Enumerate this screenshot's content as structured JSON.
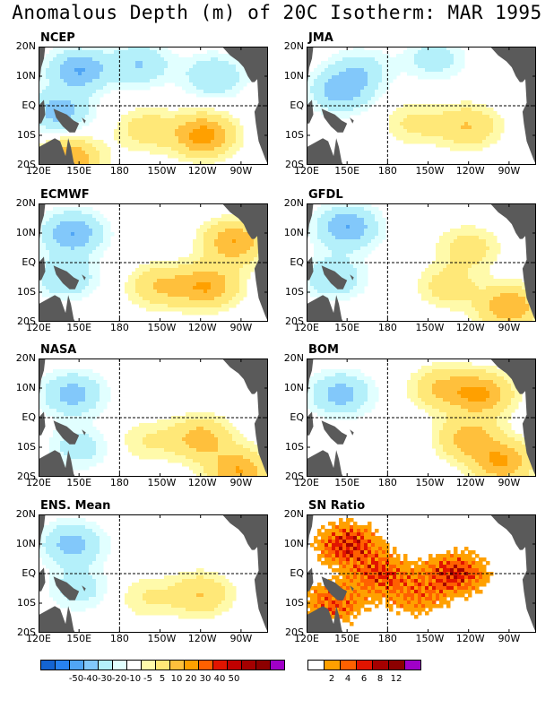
{
  "title": "Anomalous Depth (m) of 20C Isotherm: MAR 1995",
  "x_ticks": [
    "120E",
    "150E",
    "180",
    "150W",
    "120W",
    "90W"
  ],
  "y_ticks": [
    "20N",
    "10N",
    "EQ",
    "10S",
    "20S"
  ],
  "colors": {
    "land": "#5a5a5a",
    "anomaly_scale": [
      "#1464d2",
      "#2882f0",
      "#50a5f5",
      "#82c8fa",
      "#b4f0fa",
      "#e1ffff",
      "#ffffff",
      "#fffaaa",
      "#ffe878",
      "#ffc03c",
      "#ffa000",
      "#ff6000",
      "#e11400",
      "#c00000",
      "#a50000",
      "#8c0000",
      "#a000c8"
    ],
    "snr_scale": [
      "#ffffff",
      "#ffa000",
      "#ff6000",
      "#e11400",
      "#a50000",
      "#8c0000",
      "#a000c8"
    ]
  },
  "colorbar_anomaly_labels": [
    "-50",
    "-40",
    "-30",
    "-20",
    "-10",
    "-5",
    "5",
    "10",
    "20",
    "30",
    "40",
    "50"
  ],
  "colorbar_snr_labels": [
    "2",
    "4",
    "6",
    "8",
    "12"
  ],
  "chart_data": [
    {
      "type": "heatmap",
      "title": "NCEP",
      "x_range": [
        "120E",
        "70W"
      ],
      "y_range": [
        "20S",
        "20N"
      ],
      "contour_levels": [
        -50,
        -40,
        -30,
        -20,
        -10,
        -5,
        5,
        10,
        20,
        30,
        40,
        50
      ],
      "features": [
        {
          "lon": 150,
          "lat": 12,
          "value": -30
        },
        {
          "lon": 135,
          "lat": -2,
          "value": -25
        },
        {
          "lon": 195,
          "lat": 14,
          "value": -20
        },
        {
          "lon": 250,
          "lat": 10,
          "value": -20
        },
        {
          "lon": 242,
          "lat": -10,
          "value": 35
        },
        {
          "lon": 200,
          "lat": -8,
          "value": 15
        },
        {
          "lon": 143,
          "lat": -18,
          "value": 30
        }
      ]
    },
    {
      "type": "heatmap",
      "title": "JMA",
      "x_range": [
        "120E",
        "70W"
      ],
      "y_range": [
        "20S",
        "20N"
      ],
      "contour_levels": [
        -50,
        -40,
        -30,
        -20,
        -10,
        -5,
        5,
        10,
        20,
        30,
        40,
        50
      ],
      "features": [
        {
          "lon": 145,
          "lat": 5,
          "value": -25
        },
        {
          "lon": 160,
          "lat": 12,
          "value": -15
        },
        {
          "lon": 215,
          "lat": 16,
          "value": -15
        },
        {
          "lon": 240,
          "lat": -7,
          "value": 20
        },
        {
          "lon": 200,
          "lat": -6,
          "value": 12
        }
      ]
    },
    {
      "type": "heatmap",
      "title": "ECMWF",
      "x_range": [
        "120E",
        "70W"
      ],
      "y_range": [
        "20S",
        "20N"
      ],
      "contour_levels": [
        -50,
        -40,
        -30,
        -20,
        -10,
        -5,
        5,
        10,
        20,
        30,
        40,
        50
      ],
      "features": [
        {
          "lon": 145,
          "lat": 10,
          "value": -30
        },
        {
          "lon": 140,
          "lat": -5,
          "value": -20
        },
        {
          "lon": 245,
          "lat": -8,
          "value": 30
        },
        {
          "lon": 265,
          "lat": 7,
          "value": 30
        },
        {
          "lon": 210,
          "lat": -8,
          "value": 20
        }
      ]
    },
    {
      "type": "heatmap",
      "title": "GFDL",
      "x_range": [
        "120E",
        "70W"
      ],
      "y_range": [
        "20S",
        "20N"
      ],
      "contour_levels": [
        -50,
        -40,
        -30,
        -20,
        -10,
        -5,
        5,
        10,
        20,
        30,
        40,
        50
      ],
      "features": [
        {
          "lon": 150,
          "lat": 12,
          "value": -30
        },
        {
          "lon": 140,
          "lat": -5,
          "value": -20
        },
        {
          "lon": 270,
          "lat": -15,
          "value": 30
        },
        {
          "lon": 240,
          "lat": 5,
          "value": 15
        },
        {
          "lon": 225,
          "lat": -8,
          "value": 15
        }
      ]
    },
    {
      "type": "heatmap",
      "title": "NASA",
      "x_range": [
        "120E",
        "70W"
      ],
      "y_range": [
        "20S",
        "20N"
      ],
      "contour_levels": [
        -50,
        -40,
        -30,
        -20,
        -10,
        -5,
        5,
        10,
        20,
        30,
        40,
        50
      ],
      "features": [
        {
          "lon": 145,
          "lat": 8,
          "value": -25
        },
        {
          "lon": 150,
          "lat": -10,
          "value": -15
        },
        {
          "lon": 240,
          "lat": -7,
          "value": 25
        },
        {
          "lon": 268,
          "lat": -18,
          "value": 30
        },
        {
          "lon": 200,
          "lat": -8,
          "value": 10
        }
      ]
    },
    {
      "type": "heatmap",
      "title": "BOM",
      "x_range": [
        "120E",
        "70W"
      ],
      "y_range": [
        "20S",
        "20N"
      ],
      "contour_levels": [
        -50,
        -40,
        -30,
        -20,
        -10,
        -5,
        5,
        10,
        20,
        30,
        40,
        50
      ],
      "features": [
        {
          "lon": 145,
          "lat": 8,
          "value": -25
        },
        {
          "lon": 250,
          "lat": 8,
          "value": 30
        },
        {
          "lon": 220,
          "lat": 10,
          "value": 20
        },
        {
          "lon": 240,
          "lat": -7,
          "value": 25
        },
        {
          "lon": 265,
          "lat": -15,
          "value": 30
        }
      ]
    },
    {
      "type": "heatmap",
      "title": "ENS. Mean",
      "x_range": [
        "120E",
        "70W"
      ],
      "y_range": [
        "20S",
        "20N"
      ],
      "contour_levels": [
        -50,
        -40,
        -30,
        -20,
        -10,
        -5,
        5,
        10,
        20,
        30,
        40,
        50
      ],
      "features": [
        {
          "lon": 145,
          "lat": 10,
          "value": -25
        },
        {
          "lon": 150,
          "lat": -5,
          "value": -15
        },
        {
          "lon": 240,
          "lat": -7,
          "value": 20
        },
        {
          "lon": 200,
          "lat": -8,
          "value": 10
        }
      ]
    },
    {
      "type": "heatmap",
      "title": "SN Ratio",
      "x_range": [
        "120E",
        "70W"
      ],
      "y_range": [
        "20S",
        "20N"
      ],
      "contour_levels": [
        2,
        4,
        6,
        8,
        12
      ],
      "features": [
        {
          "lon": 150,
          "lat": 10,
          "value": 8
        },
        {
          "lon": 175,
          "lat": 0,
          "value": 6
        },
        {
          "lon": 230,
          "lat": 0,
          "value": 8
        },
        {
          "lon": 200,
          "lat": -8,
          "value": 4
        },
        {
          "lon": 140,
          "lat": -10,
          "value": 6
        }
      ]
    }
  ]
}
